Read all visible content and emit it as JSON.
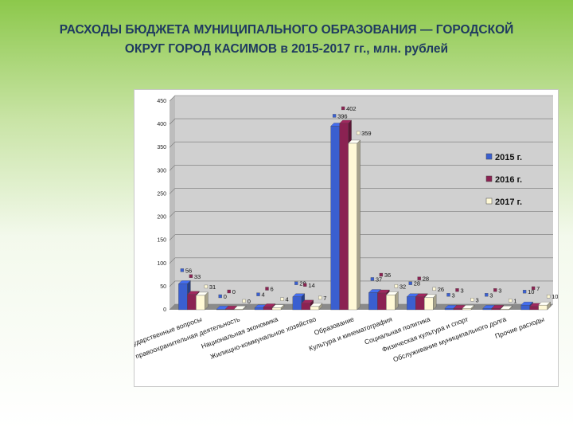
{
  "title_line1": "РАСХОДЫ  БЮДЖЕТА МУНИЦИПАЛЬНОГО ОБРАЗОВАНИЯ — ГОРОДСКОЙ",
  "title_line2": "ОКРУГ ГОРОД  КАСИМОВ в 2015-2017 гг., млн. рублей",
  "colors": {
    "series_2015": "#3a5fd0",
    "series_2016": "#8b2252",
    "series_2017": "#fff9d6",
    "plot_bg": "#d0d0d0",
    "floor": "#8a8a8a"
  },
  "chart_data": {
    "type": "bar",
    "title": "",
    "xlabel": "",
    "ylabel": "",
    "ylim": [
      0,
      450
    ],
    "yticks": [
      "0",
      "50",
      "100",
      "150",
      "200",
      "250",
      "300",
      "350",
      "400",
      "450"
    ],
    "grid": true,
    "legend_position": "right",
    "categories": [
      "Общегосударственные вопросы",
      "Нац.безопасность и правоохранительная деятельность",
      "Национальная экономика",
      "Жилищно-коммунальное хозяйство",
      "Образование",
      "Культура и кинематография",
      "Социальная политика",
      "Физическая культура и спорт",
      "Обслуживание муниципального долга",
      "Прочие расходы"
    ],
    "series": [
      {
        "name": "2015 г.",
        "values": [
          56,
          0,
          4,
          28,
          396,
          37,
          28,
          3,
          3,
          10
        ],
        "labels": [
          "56",
          "0",
          "4",
          "28",
          "396",
          "37",
          "28",
          "3",
          "3",
          "10"
        ]
      },
      {
        "name": "2016 г.",
        "values": [
          33,
          0,
          6,
          14,
          402,
          36,
          28,
          3,
          3,
          7
        ],
        "labels": [
          "33",
          "0",
          "6",
          "14",
          "402",
          "36",
          "28",
          "3",
          "3",
          "7"
        ]
      },
      {
        "name": "2017 г.",
        "values": [
          31,
          0,
          4,
          7,
          359,
          32,
          26,
          3,
          1,
          10
        ],
        "labels": [
          "31",
          "0",
          "4",
          "7",
          "359",
          "32",
          "26",
          "3",
          "1",
          "10"
        ]
      }
    ]
  }
}
